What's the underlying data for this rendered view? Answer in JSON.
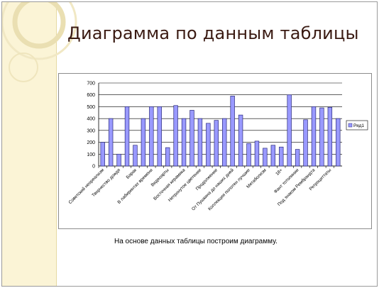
{
  "slide": {
    "title": "Диаграмма по данным таблицы",
    "caption": "На основе данных  таблицы построим  диаграмму."
  },
  "colors": {
    "bar_fill": "#9999ff",
    "bar_stroke": "#2b2b7a",
    "side_band": "#fbf4d6",
    "title_text": "#3a1a12"
  },
  "chart_data": {
    "type": "bar",
    "categories": [
      "Советский неореализм",
      "",
      "Творчество дождя",
      "",
      "Барак",
      "",
      "В лабиринтах времени",
      "",
      "Видеоарты",
      "",
      "Восточная керамика",
      "",
      "Нетронутое цветение",
      "",
      "Продолжение",
      "",
      "От Пушкина до наших дней",
      "",
      "Коллекция полотен лучшие",
      "",
      "Метаболизм",
      "",
      "18+",
      "",
      "Фант тотопинии",
      "",
      "Под знаком Рембрандта",
      "",
      "Ретроциттаты",
      ""
    ],
    "series": [
      {
        "name": "Ряд1",
        "values": [
          200,
          400,
          100,
          500,
          175,
          400,
          500,
          500,
          155,
          510,
          400,
          470,
          400,
          360,
          385,
          400,
          590,
          430,
          190,
          210,
          150,
          175,
          160,
          600,
          140,
          390,
          500,
          490,
          495,
          400
        ]
      }
    ],
    "ylim": [
      0,
      700
    ],
    "yticks": [
      0,
      100,
      200,
      300,
      400,
      500,
      600,
      700
    ],
    "grid": true,
    "legend": "right"
  }
}
